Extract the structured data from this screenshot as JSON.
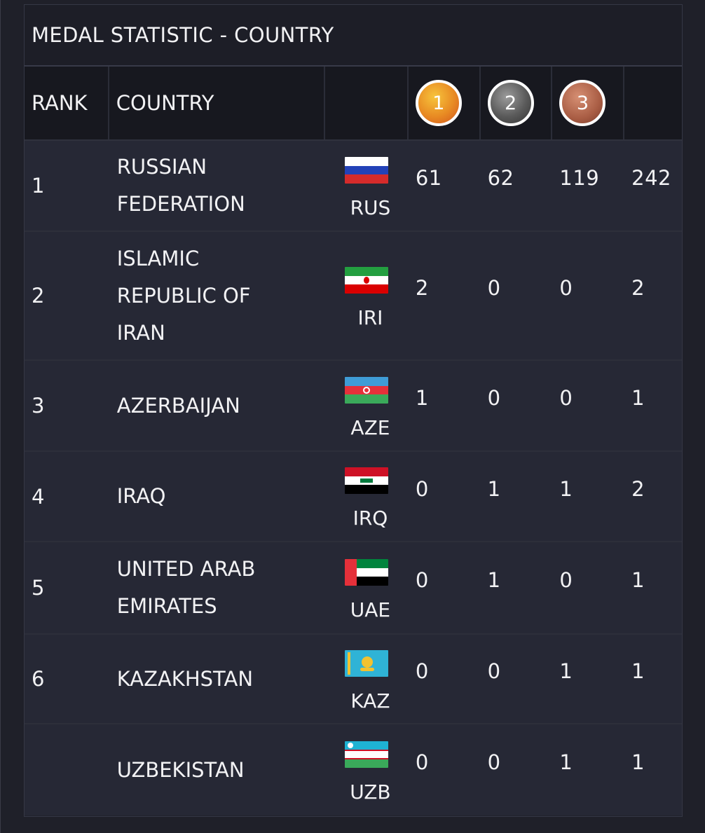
{
  "panel": {
    "title": "MEDAL STATISTIC - COUNTRY"
  },
  "table": {
    "headers": {
      "rank": "RANK",
      "country": "COUNTRY"
    },
    "medals": {
      "gold": "1",
      "silver": "2",
      "bronze": "3"
    },
    "colors": {
      "gold": "#e88a23",
      "silver": "#5a5a5a",
      "bronze": "#a95d44",
      "panel_bg": "#21222c"
    },
    "rows": [
      {
        "rank": "1",
        "country": "RUSSIAN FEDERATION",
        "code": "RUS",
        "flag_icon": "russia-flag-icon",
        "gold": "61",
        "silver": "62",
        "bronze": "119",
        "total": "242"
      },
      {
        "rank": "2",
        "country": "ISLAMIC REPUBLIC OF IRAN",
        "code": "IRI",
        "flag_icon": "iran-flag-icon",
        "gold": "2",
        "silver": "0",
        "bronze": "0",
        "total": "2"
      },
      {
        "rank": "3",
        "country": "AZERBAIJAN",
        "code": "AZE",
        "flag_icon": "azerbaijan-flag-icon",
        "gold": "1",
        "silver": "0",
        "bronze": "0",
        "total": "1"
      },
      {
        "rank": "4",
        "country": "IRAQ",
        "code": "IRQ",
        "flag_icon": "iraq-flag-icon",
        "gold": "0",
        "silver": "1",
        "bronze": "1",
        "total": "2"
      },
      {
        "rank": "5",
        "country": "UNITED ARAB EMIRATES",
        "code": "UAE",
        "flag_icon": "uae-flag-icon",
        "gold": "0",
        "silver": "1",
        "bronze": "0",
        "total": "1"
      },
      {
        "rank": "6",
        "country": "KAZAKHSTAN",
        "code": "KAZ",
        "flag_icon": "kazakhstan-flag-icon",
        "gold": "0",
        "silver": "0",
        "bronze": "1",
        "total": "1"
      },
      {
        "rank": "",
        "country": "UZBEKISTAN",
        "code": "UZB",
        "flag_icon": "uzbekistan-flag-icon",
        "gold": "0",
        "silver": "0",
        "bronze": "1",
        "total": "1"
      }
    ]
  }
}
